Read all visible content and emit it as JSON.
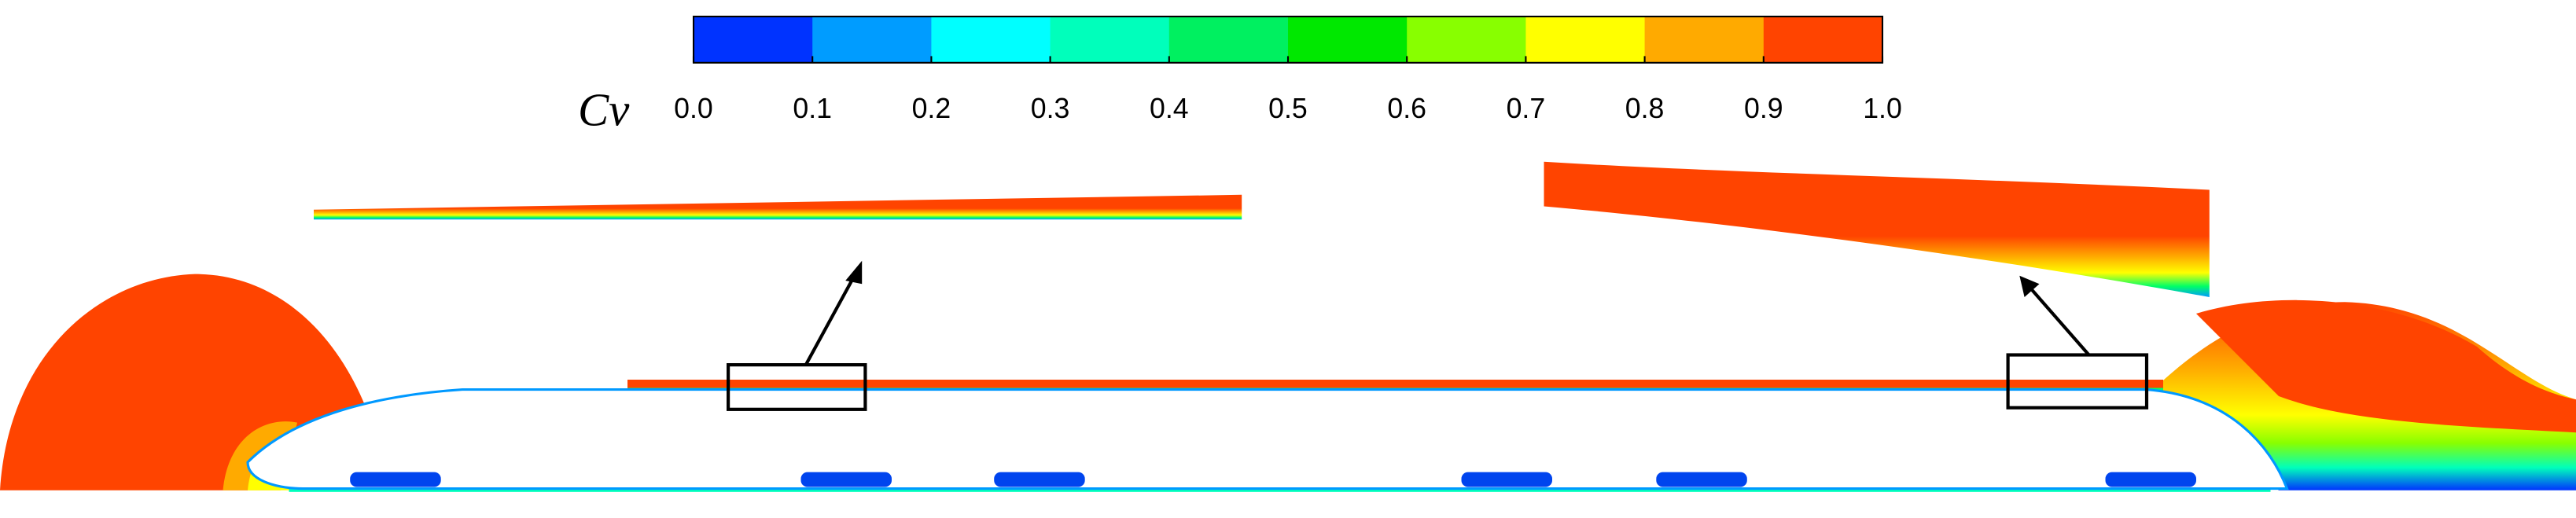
{
  "colorbar": {
    "label": "Cv",
    "range": [
      0,
      1
    ],
    "ticks": [
      {
        "value": 0,
        "label": "0.0"
      },
      {
        "value": 0.1,
        "label": "0.1"
      },
      {
        "value": 0.2,
        "label": "0.2"
      },
      {
        "value": 0.3,
        "label": "0.3"
      },
      {
        "value": 0.4,
        "label": "0.4"
      },
      {
        "value": 0.5,
        "label": "0.5"
      },
      {
        "value": 0.6,
        "label": "0.6"
      },
      {
        "value": 0.7,
        "label": "0.7"
      },
      {
        "value": 0.8,
        "label": "0.8"
      },
      {
        "value": 0.9,
        "label": "0.9"
      },
      {
        "value": 1,
        "label": "1.0"
      }
    ],
    "colors": [
      "#0033ff",
      "#009cff",
      "#00ffff",
      "#00ffbb",
      "#00f060",
      "#00e800",
      "#88ff00",
      "#ffff00",
      "#ffaa00",
      "#ff4400"
    ]
  }
}
